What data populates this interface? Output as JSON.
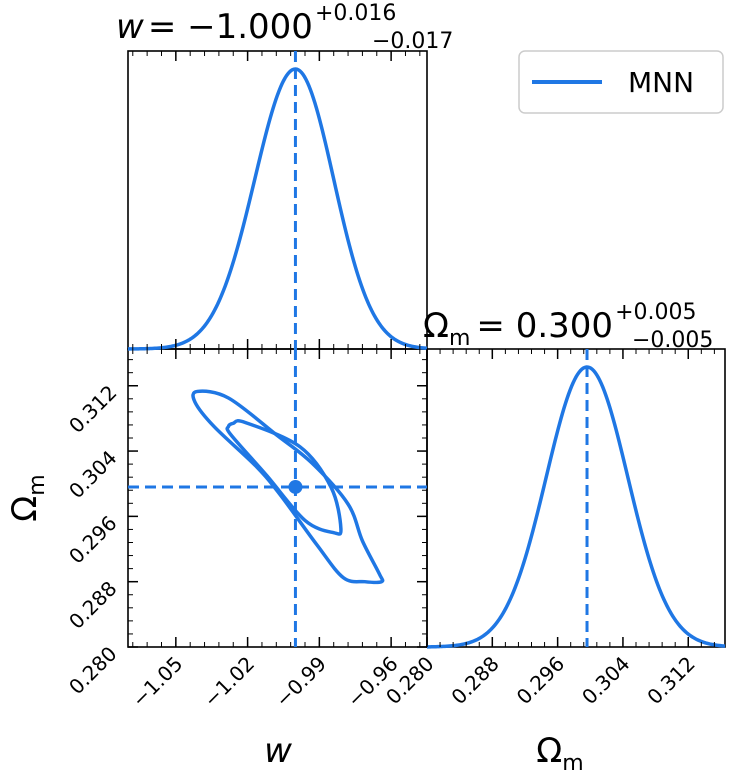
{
  "colors": {
    "series": "#1f77e4",
    "axes": "#000000",
    "background": "#ffffff"
  },
  "legend": {
    "label": "MNN",
    "placement": "top-right"
  },
  "titles": {
    "w": {
      "lhs": "w",
      "eq": "= −1.000",
      "sup": "+0.016",
      "sub": "−0.017"
    },
    "om": {
      "lhs": "Ω",
      "lhs_sub": "m",
      "eq": "= 0.300",
      "sup": "+0.005",
      "sub": "−0.005"
    }
  },
  "axis_labels": {
    "x_w": "w",
    "x_om": "Ω",
    "x_om_sub": "m",
    "y_om": "Ω",
    "y_om_sub": "m"
  },
  "chart_data": [
    {
      "type": "line",
      "panel": "w-marginal",
      "x_range": [
        -1.07,
        -0.945
      ],
      "mean": -1.0,
      "sigma_plus": 0.016,
      "sigma_minus": 0.017,
      "marker_x": -1.0,
      "series": [
        {
          "name": "MNN"
        }
      ]
    },
    {
      "type": "scatter",
      "panel": "w-Om-joint",
      "x_range": [
        -1.07,
        -0.945
      ],
      "y_range": [
        0.28,
        0.3165
      ],
      "x_ticks": [
        -1.05,
        -1.02,
        -0.99,
        -0.96
      ],
      "x_tick_labels": [
        "−1.05",
        "−1.02",
        "−0.99",
        "−0.96"
      ],
      "y_ticks": [
        0.28,
        0.288,
        0.296,
        0.304,
        0.312
      ],
      "y_tick_labels": [
        "0.280",
        "0.288",
        "0.296",
        "0.304",
        "0.312"
      ],
      "point": {
        "x": -1.0,
        "y": 0.2996
      },
      "marker_x": -1.0,
      "marker_y": 0.2996,
      "contours": [
        {
          "level": "inner",
          "points": [
            [
              -1.026,
              0.3074
            ],
            [
              -1.021,
              0.3075
            ],
            [
              -0.998,
              0.3045
            ],
            [
              -0.985,
              0.2995
            ],
            [
              -0.981,
              0.2945
            ],
            [
              -0.984,
              0.294
            ],
            [
              -0.996,
              0.2955
            ],
            [
              -1.012,
              0.301
            ],
            [
              -1.027,
              0.306
            ],
            [
              -1.028,
              0.307
            ]
          ]
        },
        {
          "level": "outer",
          "points": [
            [
              -1.041,
              0.3113
            ],
            [
              -1.028,
              0.3105
            ],
            [
              -1.008,
              0.306
            ],
            [
              -0.993,
              0.3025
            ],
            [
              -0.978,
              0.2975
            ],
            [
              -0.972,
              0.293
            ],
            [
              -0.965,
              0.289
            ],
            [
              -0.964,
              0.288
            ],
            [
              -0.971,
              0.288
            ],
            [
              -0.98,
              0.2885
            ],
            [
              -0.991,
              0.2925
            ],
            [
              -1.006,
              0.2985
            ],
            [
              -1.016,
              0.302
            ],
            [
              -1.034,
              0.307
            ],
            [
              -1.042,
              0.31
            ]
          ]
        }
      ]
    },
    {
      "type": "line",
      "panel": "Om-marginal",
      "x_range": [
        0.28,
        0.3165
      ],
      "x_ticks": [
        0.28,
        0.288,
        0.296,
        0.304,
        0.312
      ],
      "x_tick_labels": [
        "0.280",
        "0.288",
        "0.296",
        "0.304",
        "0.312"
      ],
      "mean": 0.2996,
      "sigma_plus": 0.005,
      "sigma_minus": 0.005,
      "marker_x": 0.2996,
      "series": [
        {
          "name": "MNN"
        }
      ]
    }
  ]
}
